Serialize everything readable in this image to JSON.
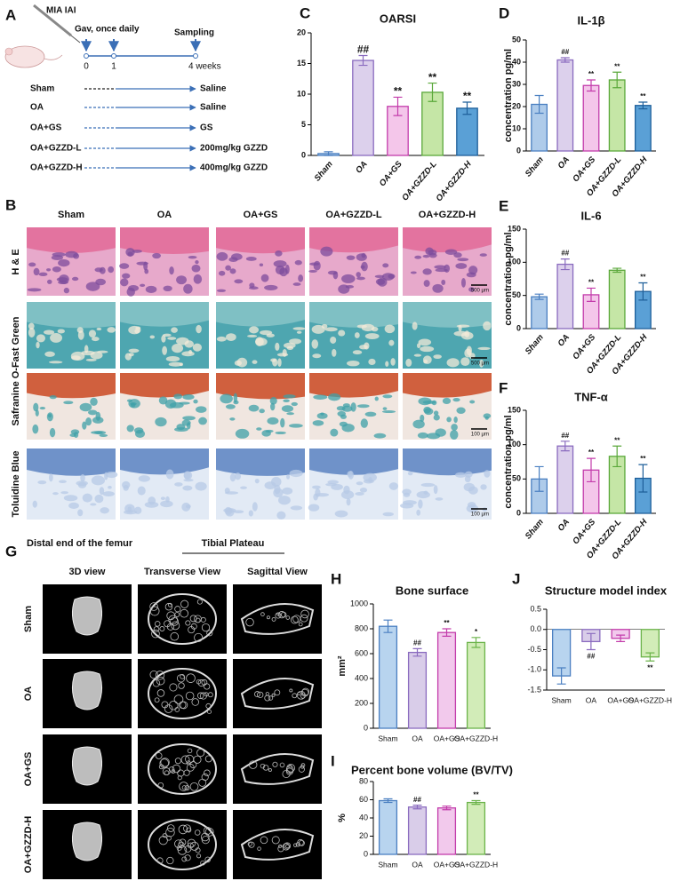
{
  "panel_labels": [
    "A",
    "B",
    "C",
    "D",
    "E",
    "F",
    "G",
    "H",
    "I",
    "J"
  ],
  "scheme": {
    "injection": "MIA IAI",
    "gavage": "Gav, once daily",
    "sampling": "Sampling",
    "timepoints": [
      "0",
      "1",
      "4 weeks"
    ],
    "groups": [
      "Sham",
      "OA",
      "OA+GS",
      "OA+GZZD-L",
      "OA+GZZD-H"
    ],
    "treatments": [
      "Saline",
      "Saline",
      "GS",
      "200mg/kg GZZD",
      "400mg/kg GZZD"
    ]
  },
  "histology": {
    "columns": [
      "Sham",
      "OA",
      "OA+GS",
      "OA+GZZD-L",
      "OA+GZZD-H"
    ],
    "rows": [
      "H & E",
      "Safranine O-Fast Green",
      "Toluidine Blue"
    ],
    "scale_bars": [
      "500 μm",
      "500 μm",
      "100 μm",
      "100 μm"
    ]
  },
  "microct": {
    "title": "Distal end of the femur",
    "subtitle": "Tibial Plateau",
    "columns": [
      "3D view",
      "Transverse View",
      "Sagittal View"
    ],
    "rows": [
      "Sham",
      "OA",
      "OA+GS",
      "OA+GZZD-H"
    ]
  },
  "chart_data": [
    {
      "type": "bar",
      "title": "OARSI",
      "categories": [
        "Sham",
        "OA",
        "OA+GS",
        "OA+GZZD-L",
        "OA+GZZD-H"
      ],
      "values": [
        0.3,
        15.5,
        8,
        10.3,
        7.7
      ],
      "errors": [
        0.3,
        0.8,
        1.5,
        1.5,
        1.0
      ],
      "annotations": [
        null,
        "##",
        "**",
        "**",
        "**"
      ],
      "colors": [
        "#aecbea",
        "#dcd0ec",
        "#f4c6ea",
        "#c5e6a6",
        "#5aa0d6"
      ],
      "edge_colors": [
        "#4a7fc1",
        "#8a6bbf",
        "#c33cab",
        "#5aa83a",
        "#1e5f9a"
      ],
      "ylim": [
        0,
        20
      ],
      "yticks": [
        0,
        5,
        10,
        15,
        20
      ]
    },
    {
      "type": "bar",
      "title": "IL-1β",
      "y_label": "concentration pg/ml",
      "categories": [
        "Sham",
        "OA",
        "OA+GS",
        "OA+GZZD-L",
        "OA+GZZD-H"
      ],
      "values": [
        21,
        41,
        29.5,
        32,
        20.5
      ],
      "errors": [
        4,
        1,
        2.5,
        3.5,
        1.5
      ],
      "annotations": [
        null,
        "##",
        "**",
        "**",
        "**"
      ],
      "colors": [
        "#aecbea",
        "#dcd0ec",
        "#f4c6ea",
        "#c5e6a6",
        "#5aa0d6"
      ],
      "edge_colors": [
        "#4a7fc1",
        "#8a6bbf",
        "#c33cab",
        "#5aa83a",
        "#1e5f9a"
      ],
      "ylim": [
        0,
        50
      ],
      "yticks": [
        0,
        10,
        20,
        30,
        40,
        50
      ]
    },
    {
      "type": "bar",
      "title": "IL-6",
      "y_label": "concentration pg/ml",
      "categories": [
        "Sham",
        "OA",
        "OA+GS",
        "OA+GZZD-L",
        "OA+GZZD-H"
      ],
      "values": [
        48,
        97,
        51,
        88,
        56
      ],
      "errors": [
        4,
        8,
        10,
        3,
        13
      ],
      "annotations": [
        null,
        "##",
        "**",
        null,
        "**"
      ],
      "colors": [
        "#aecbea",
        "#dcd0ec",
        "#f4c6ea",
        "#c5e6a6",
        "#5aa0d6"
      ],
      "edge_colors": [
        "#4a7fc1",
        "#8a6bbf",
        "#c33cab",
        "#5aa83a",
        "#1e5f9a"
      ],
      "ylim": [
        0,
        150
      ],
      "yticks": [
        0,
        50,
        100,
        150
      ]
    },
    {
      "type": "bar",
      "title": "TNF-α",
      "y_label": "concentration pg/ml",
      "categories": [
        "Sham",
        "OA",
        "OA+GS",
        "OA+GZZD-L",
        "OA+GZZD-H"
      ],
      "values": [
        50,
        98,
        63,
        83,
        51
      ],
      "errors": [
        18,
        7,
        17,
        15,
        20
      ],
      "annotations": [
        null,
        "##",
        "**",
        "**",
        "**"
      ],
      "colors": [
        "#aecbea",
        "#dcd0ec",
        "#f4c6ea",
        "#c5e6a6",
        "#5aa0d6"
      ],
      "edge_colors": [
        "#4a7fc1",
        "#8a6bbf",
        "#c33cab",
        "#5aa83a",
        "#1e5f9a"
      ],
      "ylim": [
        0,
        150
      ],
      "yticks": [
        0,
        50,
        100,
        150
      ]
    },
    {
      "type": "bar",
      "title": "Bone surface",
      "y_label": "mm²",
      "categories": [
        "Sham",
        "OA",
        "OA+GS",
        "OA+GZZD-H"
      ],
      "values": [
        820,
        610,
        770,
        690
      ],
      "errors": [
        50,
        30,
        30,
        40
      ],
      "annotations": [
        null,
        "##",
        "**",
        "*"
      ],
      "colors": [
        "#b8d4ef",
        "#d9cde9",
        "#f2c9ec",
        "#d2ecb8"
      ],
      "edge_colors": [
        "#4a7fc1",
        "#8a6bbf",
        "#c33cab",
        "#6bb34a"
      ],
      "ylim": [
        0,
        1000
      ],
      "yticks": [
        0,
        200,
        400,
        600,
        800,
        1000
      ]
    },
    {
      "type": "bar",
      "title": "Percent bone volume (BV/TV)",
      "y_label": "%",
      "categories": [
        "Sham",
        "OA",
        "OA+GS",
        "OA+GZZD-H"
      ],
      "values": [
        59,
        52,
        51,
        57
      ],
      "errors": [
        2,
        2,
        2,
        2
      ],
      "annotations": [
        null,
        "##",
        null,
        "**"
      ],
      "colors": [
        "#b8d4ef",
        "#d9cde9",
        "#f2c9ec",
        "#d2ecb8"
      ],
      "edge_colors": [
        "#4a7fc1",
        "#8a6bbf",
        "#c33cab",
        "#6bb34a"
      ],
      "ylim": [
        0,
        80
      ],
      "yticks": [
        0,
        20,
        40,
        60,
        80
      ]
    },
    {
      "type": "bar",
      "title": "Structure model index",
      "categories": [
        "Sham",
        "OA",
        "OA+GS",
        "OA+GZZD-H"
      ],
      "values": [
        -1.15,
        -0.3,
        -0.22,
        -0.68
      ],
      "errors": [
        0.2,
        0.2,
        0.08,
        0.1
      ],
      "annotations": [
        null,
        "##",
        null,
        "**"
      ],
      "colors": [
        "#b8d4ef",
        "#d9cde9",
        "#f2c9ec",
        "#d2ecb8"
      ],
      "edge_colors": [
        "#4a7fc1",
        "#8a6bbf",
        "#c33cab",
        "#6bb34a"
      ],
      "ylim": [
        -1.5,
        0.5
      ],
      "yticks": [
        -1.5,
        {
          "value": -1,
          "label": "-1.0"
        },
        -0.5,
        {
          "value": 0,
          "label": "0.0"
        },
        0.5
      ]
    }
  ]
}
